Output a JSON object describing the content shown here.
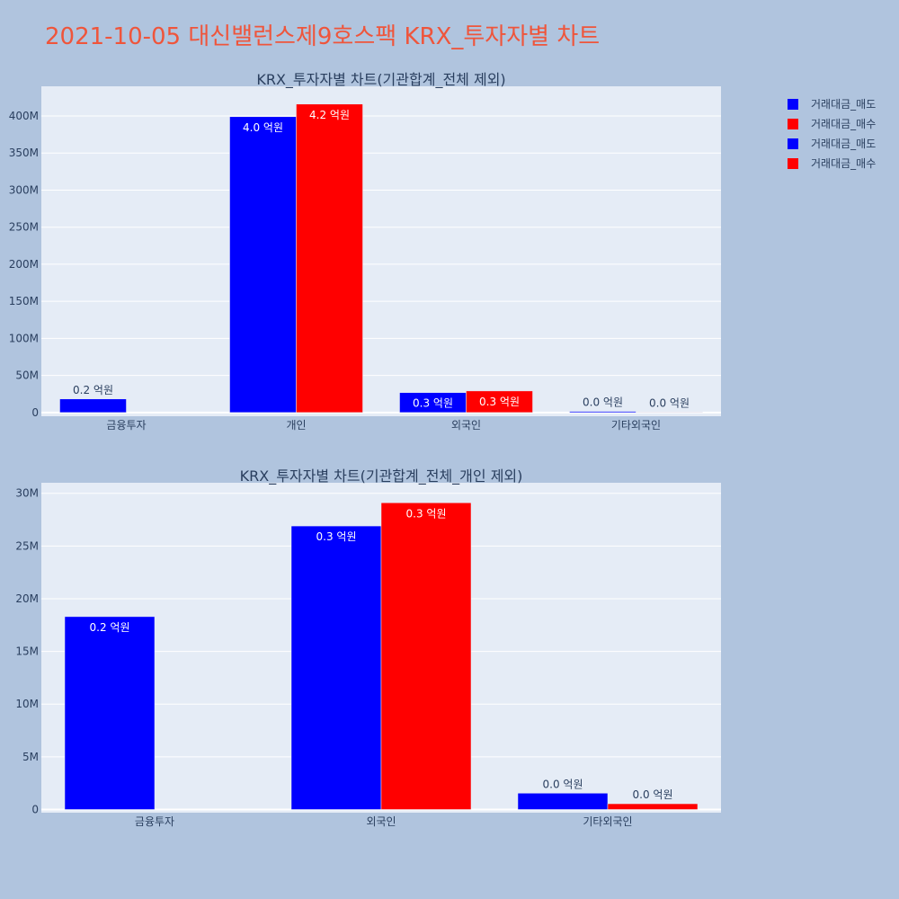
{
  "page": {
    "title": "2021-10-05 대신밸런스제9호스팩 KRX_투자자별 차트",
    "title_color": "#ef553b",
    "background": "#b0c4de",
    "plot_background": "#e5ecf6"
  },
  "legend": {
    "placement": "top-right",
    "entries": [
      {
        "label": "거래대금_매도",
        "color": "#0000ff"
      },
      {
        "label": "거래대금_매수",
        "color": "#ff0000"
      },
      {
        "label": "거래대금_매도",
        "color": "#0000ff"
      },
      {
        "label": "거래대금_매수",
        "color": "#ff0000"
      }
    ]
  },
  "chart_data": [
    {
      "type": "bar",
      "title": "KRX_투자자별 차트(기관합계_전체 제외)",
      "categories": [
        "금융투자",
        "개인",
        "외국인",
        "기타외국인"
      ],
      "series": [
        {
          "name": "거래대금_매도",
          "color": "#0000ff",
          "values": [
            18300000,
            399000000,
            26900000,
            1550000
          ],
          "labels": [
            "0.2 억원",
            "4.0 억원",
            "0.3 억원",
            "0.0 억원"
          ]
        },
        {
          "name": "거래대금_매수",
          "color": "#ff0000",
          "values": [
            0,
            416000000,
            29100000,
            550000
          ],
          "labels": [
            "",
            "4.2 억원",
            "0.3 억원",
            "0.0 억원"
          ]
        }
      ],
      "ylim": [
        -5000000,
        440000000
      ],
      "yticks": [
        0,
        50000000,
        100000000,
        150000000,
        200000000,
        250000000,
        300000000,
        350000000,
        400000000
      ],
      "ytick_labels": [
        "0",
        "50M",
        "100M",
        "150M",
        "200M",
        "250M",
        "300M",
        "350M",
        "400M"
      ],
      "grid": true
    },
    {
      "type": "bar",
      "title": "KRX_투자자별 차트(기관합계_전체_개인 제외)",
      "categories": [
        "금융투자",
        "외국인",
        "기타외국인"
      ],
      "series": [
        {
          "name": "거래대금_매도",
          "color": "#0000ff",
          "values": [
            18300000,
            26900000,
            1550000
          ],
          "labels": [
            "0.2 억원",
            "0.3 억원",
            "0.0 억원"
          ]
        },
        {
          "name": "거래대금_매수",
          "color": "#ff0000",
          "values": [
            0,
            29100000,
            550000
          ],
          "labels": [
            "",
            "0.3 억원",
            "0.0 억원"
          ]
        }
      ],
      "ylim": [
        -300000,
        31000000
      ],
      "yticks": [
        0,
        5000000,
        10000000,
        15000000,
        20000000,
        25000000,
        30000000
      ],
      "ytick_labels": [
        "0",
        "5M",
        "10M",
        "15M",
        "20M",
        "25M",
        "30M"
      ],
      "grid": true
    }
  ]
}
